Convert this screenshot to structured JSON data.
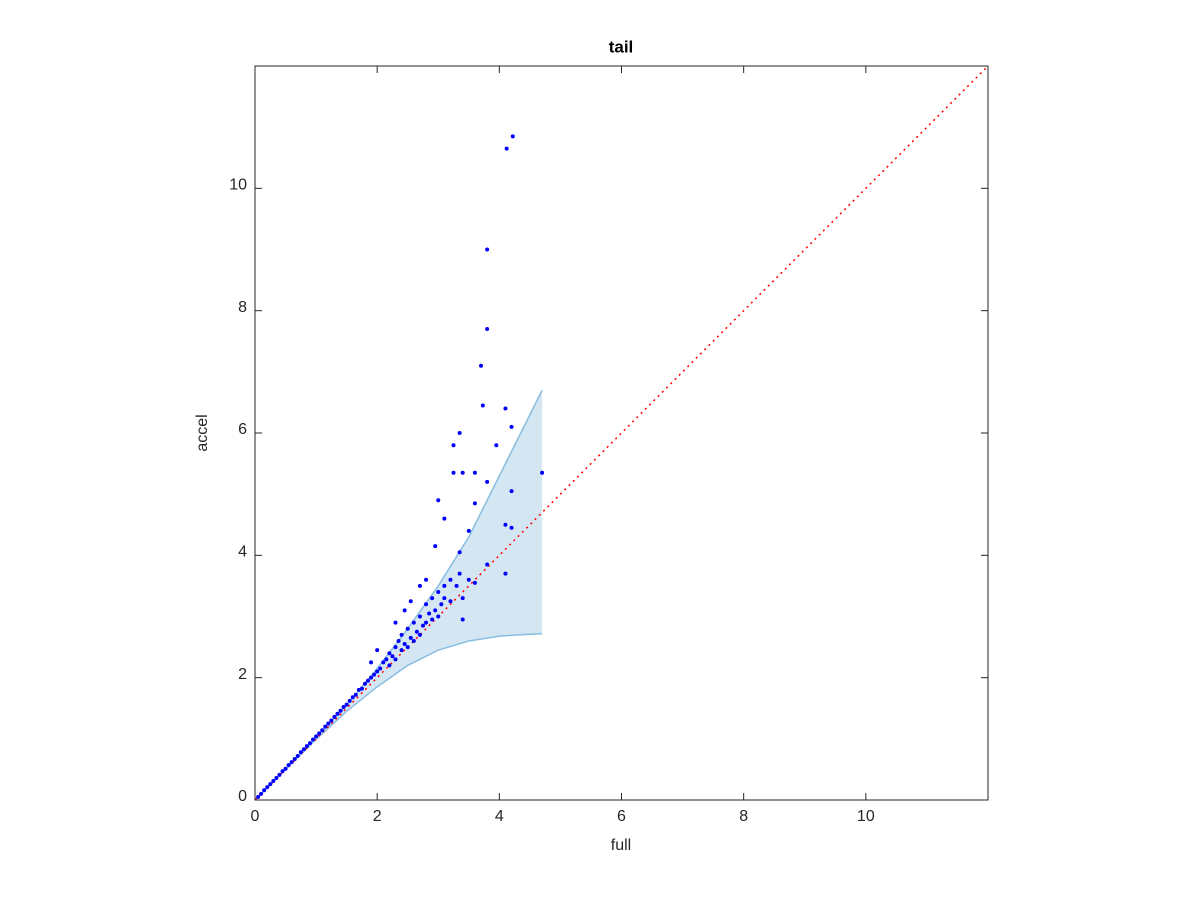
{
  "chart_data": {
    "type": "scatter",
    "title": "tail",
    "x_label": "full",
    "y_label": "accel",
    "xlim": [
      0,
      12
    ],
    "ylim": [
      0,
      12
    ],
    "xticks": [
      0,
      2,
      4,
      6,
      8,
      10
    ],
    "yticks": [
      0,
      2,
      4,
      6,
      8,
      10
    ],
    "band": {
      "color": "#d5e6f3",
      "edge_color": "#88bde3",
      "x": [
        0,
        0.5,
        1,
        1.5,
        2,
        2.5,
        3,
        3.5,
        4,
        4.5,
        4.7
      ],
      "upper": [
        0,
        0.5,
        1.02,
        1.55,
        2.15,
        2.8,
        3.5,
        4.3,
        5.3,
        6.3,
        6.7
      ],
      "lower": [
        0,
        0.5,
        0.99,
        1.45,
        1.85,
        2.2,
        2.45,
        2.6,
        2.68,
        2.71,
        2.72
      ]
    },
    "reference_line": {
      "color": "#ff0000",
      "x": [
        0,
        12
      ],
      "y": [
        0,
        12
      ]
    },
    "series": [
      {
        "color": "#0000ff",
        "x": [
          0.05,
          0.1,
          0.15,
          0.2,
          0.25,
          0.3,
          0.35,
          0.4,
          0.45,
          0.5,
          0.55,
          0.6,
          0.65,
          0.7,
          0.75,
          0.8,
          0.85,
          0.9,
          0.95,
          1.0,
          1.05,
          1.1,
          1.15,
          1.2,
          1.25,
          1.3,
          1.35,
          1.4,
          1.45,
          1.5,
          1.55,
          1.6,
          1.65,
          1.7,
          1.75,
          1.8,
          1.85,
          1.9,
          1.95,
          2.0,
          2.05,
          2.1,
          2.15,
          2.2,
          2.2,
          2.25,
          2.3,
          2.3,
          2.35,
          2.4,
          2.4,
          2.45,
          2.5,
          2.5,
          2.55,
          2.6,
          2.6,
          2.65,
          2.7,
          2.7,
          2.75,
          2.8,
          2.8,
          2.85,
          2.9,
          2.9,
          2.95,
          3.0,
          3.0,
          3.05,
          3.1,
          3.1,
          3.2,
          3.2,
          3.3,
          3.35,
          3.4,
          3.5,
          3.6,
          2.8,
          2.7,
          2.55,
          2.45,
          2.3,
          2.0,
          1.9,
          4.22,
          4.12,
          3.8,
          3.8,
          3.7,
          3.73,
          4.1,
          4.2,
          3.35,
          3.25,
          3.95,
          4.7,
          3.25,
          3.4,
          3.6,
          3.8,
          4.2,
          3.0,
          3.6,
          3.1,
          4.1,
          4.2,
          3.5,
          2.95,
          3.35,
          4.1,
          3.8,
          3.4
        ],
        "values": [
          0.05,
          0.1,
          0.16,
          0.21,
          0.26,
          0.31,
          0.36,
          0.41,
          0.47,
          0.51,
          0.57,
          0.62,
          0.67,
          0.72,
          0.78,
          0.83,
          0.88,
          0.93,
          0.99,
          1.04,
          1.09,
          1.14,
          1.2,
          1.25,
          1.3,
          1.36,
          1.41,
          1.46,
          1.52,
          1.56,
          1.62,
          1.68,
          1.72,
          1.8,
          1.82,
          1.9,
          1.95,
          2.0,
          2.05,
          2.1,
          2.15,
          2.25,
          2.3,
          2.2,
          2.4,
          2.35,
          2.5,
          2.3,
          2.6,
          2.45,
          2.7,
          2.55,
          2.8,
          2.5,
          2.65,
          2.9,
          2.6,
          2.75,
          3.0,
          2.7,
          2.85,
          3.2,
          2.9,
          3.05,
          3.3,
          2.95,
          3.1,
          3.4,
          3.0,
          3.2,
          3.5,
          3.3,
          3.6,
          3.25,
          3.5,
          3.7,
          3.3,
          3.6,
          3.55,
          3.6,
          3.5,
          3.25,
          3.1,
          2.9,
          2.45,
          2.25,
          10.85,
          10.65,
          9.0,
          7.7,
          7.1,
          6.45,
          6.4,
          6.1,
          6.0,
          5.8,
          5.8,
          5.35,
          5.35,
          5.35,
          5.35,
          5.2,
          5.05,
          4.9,
          4.85,
          4.6,
          4.5,
          4.45,
          4.4,
          4.15,
          4.05,
          3.7,
          3.85,
          2.95
        ]
      }
    ]
  }
}
